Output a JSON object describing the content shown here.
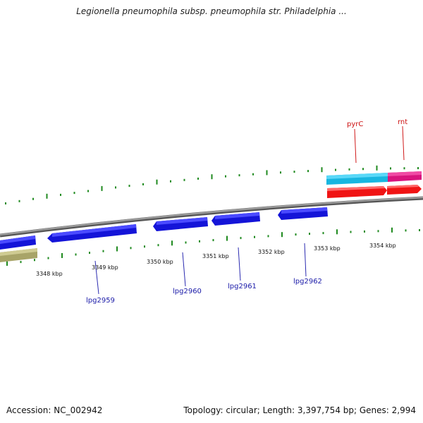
{
  "title": "Legionella pneumophila subsp. pneumophila str. Philadelphia ...",
  "footer": {
    "accession": "Accession: NC_002942",
    "summary": "Topology: circular; Length: 3,397,754 bp; Genes: 2,994"
  },
  "colors": {
    "backbone": "#8a8a8a",
    "tick_green": "#1f8a1f",
    "gene_blue": "#1a1ae6",
    "gene_cyan": "#1ec8f0",
    "gene_magenta": "#e81a8a",
    "gene_red": "#ff1a1a",
    "gene_olive": "#b8b478",
    "label_blue": "#1a1aa8",
    "label_red": "#cc1111"
  },
  "kbp_labels": [
    "3348 kbp",
    "3349 kbp",
    "3350 kbp",
    "3351 kbp",
    "3352 kbp",
    "3353 kbp",
    "3354 kbp"
  ],
  "gene_labels_bottom": [
    "lpg2959",
    "lpg2960",
    "lpg2961",
    "lpg2962"
  ],
  "gene_labels_top": [
    "pyrC",
    "rnt"
  ]
}
